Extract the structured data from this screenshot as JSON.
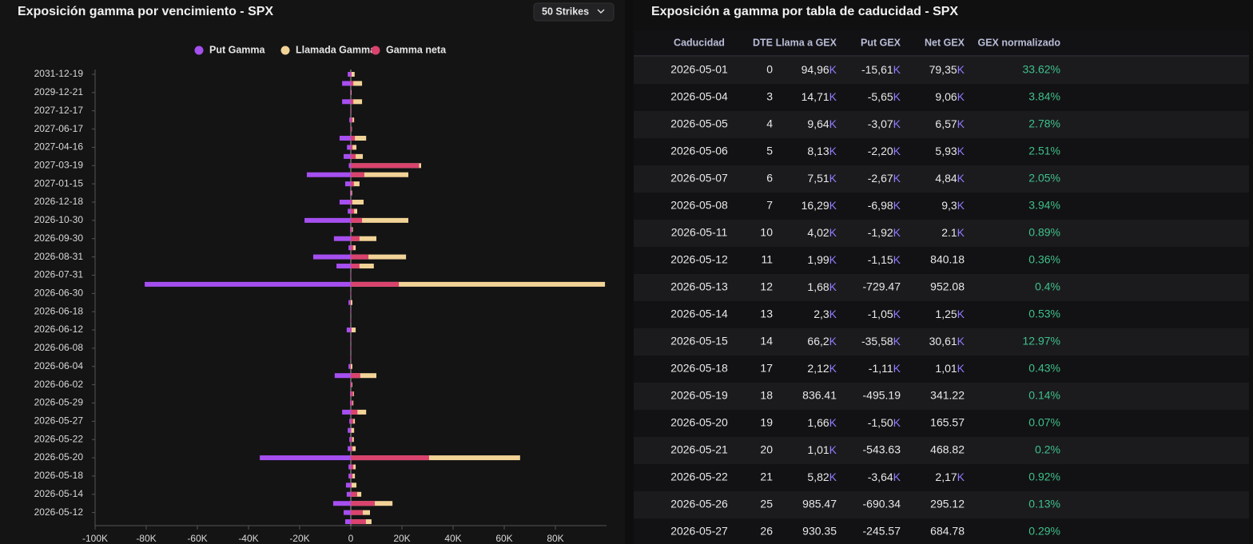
{
  "chart_data": {
    "type": "hbar",
    "title": "Exposición gamma por vencimiento - SPX",
    "categories": [
      "2031-12-19",
      null,
      "2029-12-21",
      null,
      "2027-12-17",
      null,
      "2027-06-17",
      null,
      "2027-04-16",
      null,
      "2027-03-19",
      null,
      "2027-01-15",
      null,
      "2026-12-18",
      null,
      "2026-10-30",
      null,
      "2026-09-30",
      null,
      "2026-08-31",
      null,
      "2026-07-31",
      null,
      "2026-06-30",
      null,
      "2026-06-18",
      null,
      "2026-06-12",
      null,
      "2026-06-08",
      null,
      "2026-06-04",
      null,
      "2026-06-02",
      null,
      "2026-05-29",
      null,
      "2026-05-27",
      null,
      "2026-05-22",
      null,
      "2026-05-20",
      null,
      "2026-05-18",
      null,
      "2026-05-14",
      null,
      "2026-05-12",
      null
    ],
    "series": [
      {
        "name": "Put Gamma",
        "color": "#a64ff0",
        "values": [
          -1200,
          -3400,
          -200,
          -3400,
          -100,
          -600,
          -100,
          -4400,
          -1500,
          -2800,
          -800,
          -17200,
          -2200,
          -300,
          -4400,
          -1200,
          -18100,
          -300,
          -6600,
          -900,
          -14700,
          -5600,
          -100,
          -80600,
          -100,
          -900,
          -100,
          -100,
          -1600,
          -100,
          -100,
          -100,
          -900,
          -6300,
          -200,
          -300,
          -300,
          -3400,
          -600,
          -1200,
          -600,
          -1200,
          -35600,
          -900,
          -900,
          -1900,
          -1600,
          -6900,
          -2800,
          -2200
        ]
      },
      {
        "name": "Llamada Gamma",
        "color": "#f2d397",
        "values": [
          1500,
          4400,
          300,
          4400,
          200,
          1300,
          400,
          6000,
          2200,
          4700,
          27500,
          22500,
          3400,
          500,
          5000,
          2500,
          22500,
          800,
          10000,
          1900,
          21600,
          9000,
          100,
          99400,
          100,
          600,
          100,
          100,
          1900,
          100,
          100,
          100,
          600,
          10000,
          600,
          1200,
          1000,
          6000,
          1600,
          1300,
          1200,
          1900,
          66200,
          1900,
          1600,
          2200,
          4100,
          16300,
          7500,
          8100
        ]
      },
      {
        "name": "Gamma neta",
        "color": "#d9436e",
        "values": [
          300,
          1000,
          100,
          1000,
          100,
          700,
          300,
          1600,
          700,
          1900,
          26700,
          5300,
          1200,
          200,
          600,
          1300,
          4400,
          500,
          3400,
          1000,
          6900,
          3400,
          0,
          18800,
          0,
          -300,
          0,
          0,
          300,
          0,
          0,
          0,
          -300,
          3700,
          400,
          900,
          700,
          2600,
          1000,
          100,
          600,
          700,
          30600,
          1000,
          700,
          300,
          2500,
          9400,
          4700,
          5900
        ]
      }
    ],
    "xlim": [
      -100000,
      100000
    ],
    "xticks": [
      {
        "value": -100000,
        "label": "-100K"
      },
      {
        "value": -80000,
        "label": "-80K"
      },
      {
        "value": -60000,
        "label": "-60K"
      },
      {
        "value": -40000,
        "label": "-40K"
      },
      {
        "value": -20000,
        "label": "-20K"
      },
      0,
      {
        "value": 20000,
        "label": "20K"
      },
      {
        "value": 40000,
        "label": "40K"
      },
      {
        "value": 60000,
        "label": "60K"
      },
      {
        "value": 80000,
        "label": "80K"
      }
    ],
    "legend": "top"
  },
  "controls": {
    "strikes": "50 Strikes"
  },
  "table": {
    "title": "Exposición a gamma por tabla de caducidad - SPX",
    "columns": [
      "Caducidad",
      "DTE",
      "Llama a GEX",
      "Put GEX",
      "Net GEX",
      "GEX normalizado"
    ],
    "rows": [
      [
        "2026-05-01",
        0,
        {
          "text": "94,96",
          "suffix": "K"
        },
        {
          "text": "-15,61",
          "suffix": "K"
        },
        {
          "text": "79,35",
          "suffix": "K"
        },
        "33.62%"
      ],
      [
        "2026-05-04",
        3,
        {
          "text": "14,71",
          "suffix": "K"
        },
        {
          "text": "-5,65",
          "suffix": "K"
        },
        {
          "text": "9,06",
          "suffix": "K"
        },
        "3.84%"
      ],
      [
        "2026-05-05",
        4,
        {
          "text": "9,64",
          "suffix": "K"
        },
        {
          "text": "-3,07",
          "suffix": "K"
        },
        {
          "text": "6,57",
          "suffix": "K"
        },
        "2.78%"
      ],
      [
        "2026-05-06",
        5,
        {
          "text": "8,13",
          "suffix": "K"
        },
        {
          "text": "-2,20",
          "suffix": "K"
        },
        {
          "text": "5,93",
          "suffix": "K"
        },
        "2.51%"
      ],
      [
        "2026-05-07",
        6,
        {
          "text": "7,51",
          "suffix": "K"
        },
        {
          "text": "-2,67",
          "suffix": "K"
        },
        {
          "text": "4,84",
          "suffix": "K"
        },
        "2.05%"
      ],
      [
        "2026-05-08",
        7,
        {
          "text": "16,29",
          "suffix": "K"
        },
        {
          "text": "-6,98",
          "suffix": "K"
        },
        {
          "text": "9,3",
          "suffix": "K"
        },
        "3.94%"
      ],
      [
        "2026-05-11",
        10,
        {
          "text": "4,02",
          "suffix": "K"
        },
        {
          "text": "-1,92",
          "suffix": "K"
        },
        {
          "text": "2.1",
          "suffix": "K"
        },
        "0.89%"
      ],
      [
        "2026-05-12",
        11,
        {
          "text": "1,99",
          "suffix": "K"
        },
        {
          "text": "-1,15",
          "suffix": "K"
        },
        "840.18",
        "0.36%"
      ],
      [
        "2026-05-13",
        12,
        {
          "text": "1,68",
          "suffix": "K"
        },
        "-729.47",
        "952.08",
        "0.4%"
      ],
      [
        "2026-05-14",
        13,
        {
          "text": "2,3",
          "suffix": "K"
        },
        {
          "text": "-1,05",
          "suffix": "K"
        },
        {
          "text": "1,25",
          "suffix": "K"
        },
        "0.53%"
      ],
      [
        "2026-05-15",
        14,
        {
          "text": "66,2",
          "suffix": "K"
        },
        {
          "text": "-35,58",
          "suffix": "K"
        },
        {
          "text": "30,61",
          "suffix": "K"
        },
        "12.97%"
      ],
      [
        "2026-05-18",
        17,
        {
          "text": "2,12",
          "suffix": "K"
        },
        {
          "text": "-1,11",
          "suffix": "K"
        },
        {
          "text": "1,01",
          "suffix": "K"
        },
        "0.43%"
      ],
      [
        "2026-05-19",
        18,
        "836.41",
        "-495.19",
        "341.22",
        "0.14%"
      ],
      [
        "2026-05-20",
        19,
        {
          "text": "1,66",
          "suffix": "K"
        },
        {
          "text": "-1,50",
          "suffix": "K"
        },
        "165.57",
        "0.07%"
      ],
      [
        "2026-05-21",
        20,
        {
          "text": "1,01",
          "suffix": "K"
        },
        "-543.63",
        "468.82",
        "0.2%"
      ],
      [
        "2026-05-22",
        21,
        {
          "text": "5,82",
          "suffix": "K"
        },
        {
          "text": "-3,64",
          "suffix": "K"
        },
        {
          "text": "2,17",
          "suffix": "K"
        },
        "0.92%"
      ],
      [
        "2026-05-26",
        25,
        "985.47",
        "-690.34",
        "295.12",
        "0.13%"
      ],
      [
        "2026-05-27",
        26,
        "930.35",
        "-245.57",
        "684.78",
        "0.29%"
      ]
    ]
  }
}
